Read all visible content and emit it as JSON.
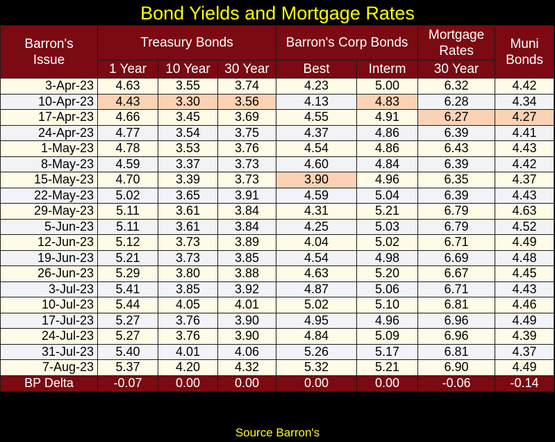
{
  "title": "Bond Yields and Mortgage Rates",
  "headers": {
    "issue": "Barron's Issue",
    "issue_line1": "Barron's",
    "issue_line2": "Issue",
    "treasury": "Treasury Bonds",
    "corp": "Barron's Corp Bonds",
    "mortgage_line1": "Mortgage",
    "mortgage_line2": "Rates",
    "muni_line1": "Muni",
    "muni_line2": "Bonds",
    "sub": [
      "1 Year",
      "10 Year",
      "30 Year",
      "Best",
      "Interm",
      "30 Year"
    ]
  },
  "rows": [
    {
      "date": "3-Apr-23",
      "v": [
        "4.63",
        "3.55",
        "3.74",
        "4.23",
        "5.00",
        "6.32",
        "4.42"
      ],
      "hl": []
    },
    {
      "date": "10-Apr-23",
      "v": [
        "4.43",
        "3.30",
        "3.56",
        "4.13",
        "4.83",
        "6.28",
        "4.34"
      ],
      "hl": [
        0,
        1,
        2,
        4
      ]
    },
    {
      "date": "17-Apr-23",
      "v": [
        "4.66",
        "3.45",
        "3.69",
        "4.55",
        "4.91",
        "6.27",
        "4.27"
      ],
      "hl": [
        5,
        6
      ]
    },
    {
      "date": "24-Apr-23",
      "v": [
        "4.77",
        "3.54",
        "3.75",
        "4.37",
        "4.86",
        "6.39",
        "4.41"
      ],
      "hl": []
    },
    {
      "date": "1-May-23",
      "v": [
        "4.78",
        "3.53",
        "3.76",
        "4.54",
        "4.86",
        "6.43",
        "4.43"
      ],
      "hl": []
    },
    {
      "date": "8-May-23",
      "v": [
        "4.59",
        "3.37",
        "3.73",
        "4.60",
        "4.84",
        "6.39",
        "4.42"
      ],
      "hl": []
    },
    {
      "date": "15-May-23",
      "v": [
        "4.70",
        "3.39",
        "3.73",
        "3.90",
        "4.96",
        "6.35",
        "4.37"
      ],
      "hl": [
        3
      ]
    },
    {
      "date": "22-May-23",
      "v": [
        "5.02",
        "3.65",
        "3.91",
        "4.59",
        "5.04",
        "6.39",
        "4.43"
      ],
      "hl": []
    },
    {
      "date": "29-May-23",
      "v": [
        "5.11",
        "3.61",
        "3.84",
        "4.31",
        "5.21",
        "6.79",
        "4.63"
      ],
      "hl": []
    },
    {
      "date": "5-Jun-23",
      "v": [
        "5.11",
        "3.61",
        "3.84",
        "4.25",
        "5.03",
        "6.79",
        "4.52"
      ],
      "hl": []
    },
    {
      "date": "12-Jun-23",
      "v": [
        "5.12",
        "3.73",
        "3.89",
        "4.04",
        "5.02",
        "6.71",
        "4.49"
      ],
      "hl": []
    },
    {
      "date": "19-Jun-23",
      "v": [
        "5.21",
        "3.73",
        "3.85",
        "4.54",
        "4.98",
        "6.69",
        "4.48"
      ],
      "hl": []
    },
    {
      "date": "26-Jun-23",
      "v": [
        "5.29",
        "3.80",
        "3.88",
        "4.63",
        "5.20",
        "6.67",
        "4.45"
      ],
      "hl": []
    },
    {
      "date": "3-Jul-23",
      "v": [
        "5.41",
        "3.85",
        "3.92",
        "4.87",
        "5.06",
        "6.71",
        "4.43"
      ],
      "hl": []
    },
    {
      "date": "10-Jul-23",
      "v": [
        "5.44",
        "4.05",
        "4.01",
        "5.02",
        "5.10",
        "6.81",
        "4.46"
      ],
      "hl": []
    },
    {
      "date": "17-Jul-23",
      "v": [
        "5.27",
        "3.76",
        "3.90",
        "4.95",
        "4.96",
        "6.96",
        "4.49"
      ],
      "hl": []
    },
    {
      "date": "24-Jul-23",
      "v": [
        "5.27",
        "3.76",
        "3.90",
        "4.84",
        "5.09",
        "6.96",
        "4.39"
      ],
      "hl": []
    },
    {
      "date": "31-Jul-23",
      "v": [
        "5.40",
        "4.01",
        "4.06",
        "5.26",
        "5.17",
        "6.81",
        "4.37"
      ],
      "hl": []
    },
    {
      "date": "7-Aug-23",
      "v": [
        "5.37",
        "4.20",
        "4.32",
        "5.32",
        "5.21",
        "6.90",
        "4.49"
      ],
      "hl": []
    }
  ],
  "delta": {
    "label": "BP Delta",
    "v": [
      "-0.07",
      "0.00",
      "0.00",
      "0.00",
      "0.00",
      "-0.06",
      "-0.14"
    ]
  },
  "source": "Source Barron's",
  "colors": {
    "header_bg": "#7b0a12",
    "title_text": "#ffff00",
    "highlight": "#fcd2b4",
    "row_odd": "#fffbe6",
    "row_even": "#f2f3f7"
  }
}
